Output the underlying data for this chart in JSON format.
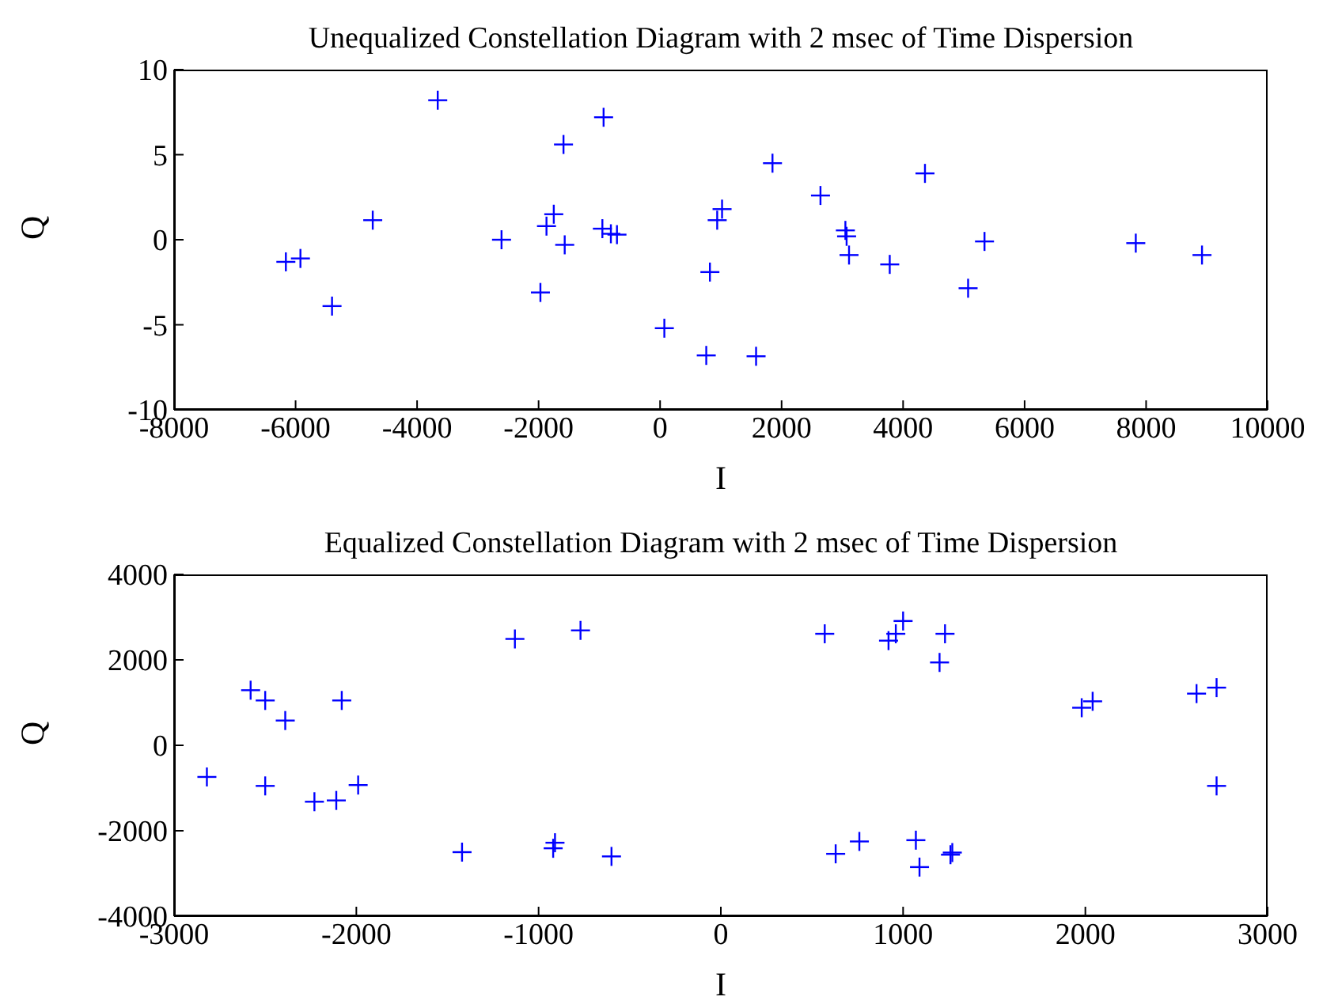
{
  "chart_data": [
    {
      "type": "scatter",
      "title": "Unequalized Constellation Diagram with 2 msec of Time Dispersion",
      "xlabel": "I",
      "ylabel": "Q",
      "marker": "cross",
      "grid": false,
      "xlim": [
        -8000,
        10000
      ],
      "xticks": [
        -8000,
        -6000,
        -4000,
        -2000,
        0,
        2000,
        4000,
        6000,
        8000,
        10000
      ],
      "ylim": [
        -10,
        10
      ],
      "yticks": [
        -10,
        -5,
        0,
        5,
        10
      ],
      "series": [
        {
          "color": "#0000ff",
          "x": [
            -6160,
            -5920,
            -5400,
            -4730,
            -3660,
            -2610,
            -1970,
            -1870,
            -1750,
            -1590,
            -1570,
            -950,
            -930,
            -810,
            -710,
            70,
            760,
            820,
            940,
            1020,
            1580,
            1850,
            2640,
            3050,
            3070,
            3110,
            3780,
            4360,
            5070,
            5340,
            7830,
            8920
          ],
          "values": [
            -1.3,
            -1.1,
            -3.9,
            1.15,
            8.2,
            0,
            -3.1,
            0.8,
            1.5,
            5.6,
            -0.3,
            0.65,
            7.2,
            0.35,
            0.3,
            -5.2,
            -6.8,
            -1.9,
            1.15,
            1.8,
            -6.85,
            4.5,
            2.6,
            0.55,
            0.2,
            -0.9,
            -1.45,
            3.9,
            -2.85,
            -0.1,
            -0.2,
            -0.9
          ]
        }
      ]
    },
    {
      "type": "scatter",
      "title": "Equalized Constellation Diagram with 2 msec of Time Dispersion",
      "xlabel": "I",
      "ylabel": "Q",
      "marker": "cross",
      "grid": false,
      "xlim": [
        -3000,
        3000
      ],
      "xticks": [
        -3000,
        -2000,
        -1000,
        0,
        1000,
        2000,
        3000
      ],
      "ylim": [
        -4000,
        4000
      ],
      "yticks": [
        -4000,
        -2000,
        0,
        2000,
        4000
      ],
      "series": [
        {
          "color": "#0000ff",
          "x": [
            -2820,
            -2580,
            -2500,
            -2390,
            -2080,
            -2500,
            -2230,
            -2110,
            -1990,
            -1420,
            -1130,
            -770,
            -910,
            -920,
            -600,
            570,
            920,
            960,
            1000,
            1230,
            1200,
            1980,
            2040,
            2610,
            2720,
            2720,
            630,
            760,
            1070,
            1090,
            1260,
            1270
          ],
          "values": [
            -740,
            1290,
            1050,
            580,
            1050,
            -950,
            -1320,
            -1290,
            -930,
            -2500,
            2490,
            2690,
            -2280,
            -2410,
            -2600,
            2610,
            2450,
            2610,
            2910,
            2610,
            1940,
            880,
            1030,
            1210,
            1350,
            -950,
            -2540,
            -2250,
            -2220,
            -2850,
            -2560,
            -2510
          ]
        }
      ]
    }
  ]
}
